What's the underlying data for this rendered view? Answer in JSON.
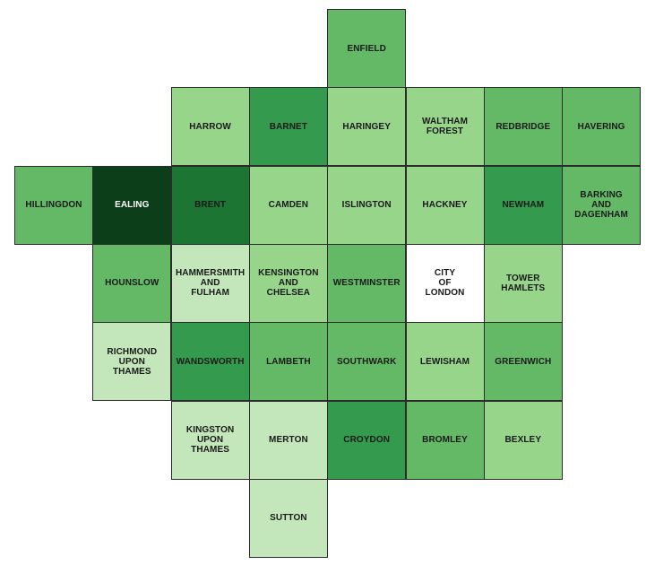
{
  "map": {
    "colors": {
      "l0": "#ffffff",
      "l1": "#c3e7ba",
      "l2": "#97d58b",
      "l3": "#64b967",
      "l4": "#349a4e",
      "l5": "#1c7532",
      "l6": "#0c3e19"
    },
    "label_colors": {
      "dark_text": "#1a1a1a",
      "light_text": "#ffffff"
    },
    "tiles": [
      {
        "name": "ENFIELD",
        "row": 0,
        "col": 4,
        "level": 3
      },
      {
        "name": "HARROW",
        "row": 1,
        "col": 2,
        "level": 2
      },
      {
        "name": "BARNET",
        "row": 1,
        "col": 3,
        "level": 4
      },
      {
        "name": "HARINGEY",
        "row": 1,
        "col": 4,
        "level": 2
      },
      {
        "name": "WALTHAM\nFOREST",
        "row": 1,
        "col": 5,
        "level": 2
      },
      {
        "name": "REDBRIDGE",
        "row": 1,
        "col": 6,
        "level": 3
      },
      {
        "name": "HAVERING",
        "row": 1,
        "col": 7,
        "level": 3
      },
      {
        "name": "HILLINGDON",
        "row": 2,
        "col": 0,
        "level": 3
      },
      {
        "name": "EALING",
        "row": 2,
        "col": 1,
        "level": 6
      },
      {
        "name": "BRENT",
        "row": 2,
        "col": 2,
        "level": 5
      },
      {
        "name": "CAMDEN",
        "row": 2,
        "col": 3,
        "level": 2
      },
      {
        "name": "ISLINGTON",
        "row": 2,
        "col": 4,
        "level": 2
      },
      {
        "name": "HACKNEY",
        "row": 2,
        "col": 5,
        "level": 2
      },
      {
        "name": "NEWHAM",
        "row": 2,
        "col": 6,
        "level": 4
      },
      {
        "name": "BARKING\nAND\nDAGENHAM",
        "row": 2,
        "col": 7,
        "level": 3
      },
      {
        "name": "HOUNSLOW",
        "row": 3,
        "col": 1,
        "level": 3
      },
      {
        "name": "HAMMERSMITH\nAND\nFULHAM",
        "row": 3,
        "col": 2,
        "level": 1
      },
      {
        "name": "KENSINGTON\nAND\nCHELSEA",
        "row": 3,
        "col": 3,
        "level": 2
      },
      {
        "name": "WESTMINSTER",
        "row": 3,
        "col": 4,
        "level": 3
      },
      {
        "name": "CITY\nOF\nLONDON",
        "row": 3,
        "col": 5,
        "level": 0
      },
      {
        "name": "TOWER HAMLETS",
        "row": 3,
        "col": 6,
        "level": 2
      },
      {
        "name": "RICHMOND\nUPON\nTHAMES",
        "row": 4,
        "col": 1,
        "level": 1
      },
      {
        "name": "WANDSWORTH",
        "row": 4,
        "col": 2,
        "level": 4
      },
      {
        "name": "LAMBETH",
        "row": 4,
        "col": 3,
        "level": 3
      },
      {
        "name": "SOUTHWARK",
        "row": 4,
        "col": 4,
        "level": 3
      },
      {
        "name": "LEWISHAM",
        "row": 4,
        "col": 5,
        "level": 2
      },
      {
        "name": "GREENWICH",
        "row": 4,
        "col": 6,
        "level": 3
      },
      {
        "name": "KINGSTON\nUPON\nTHAMES",
        "row": 5,
        "col": 2,
        "level": 1
      },
      {
        "name": "MERTON",
        "row": 5,
        "col": 3,
        "level": 1
      },
      {
        "name": "CROYDON",
        "row": 5,
        "col": 4,
        "level": 4
      },
      {
        "name": "BROMLEY",
        "row": 5,
        "col": 5,
        "level": 3
      },
      {
        "name": "BEXLEY",
        "row": 5,
        "col": 6,
        "level": 2
      },
      {
        "name": "SUTTON",
        "row": 6,
        "col": 3,
        "level": 1
      }
    ]
  }
}
